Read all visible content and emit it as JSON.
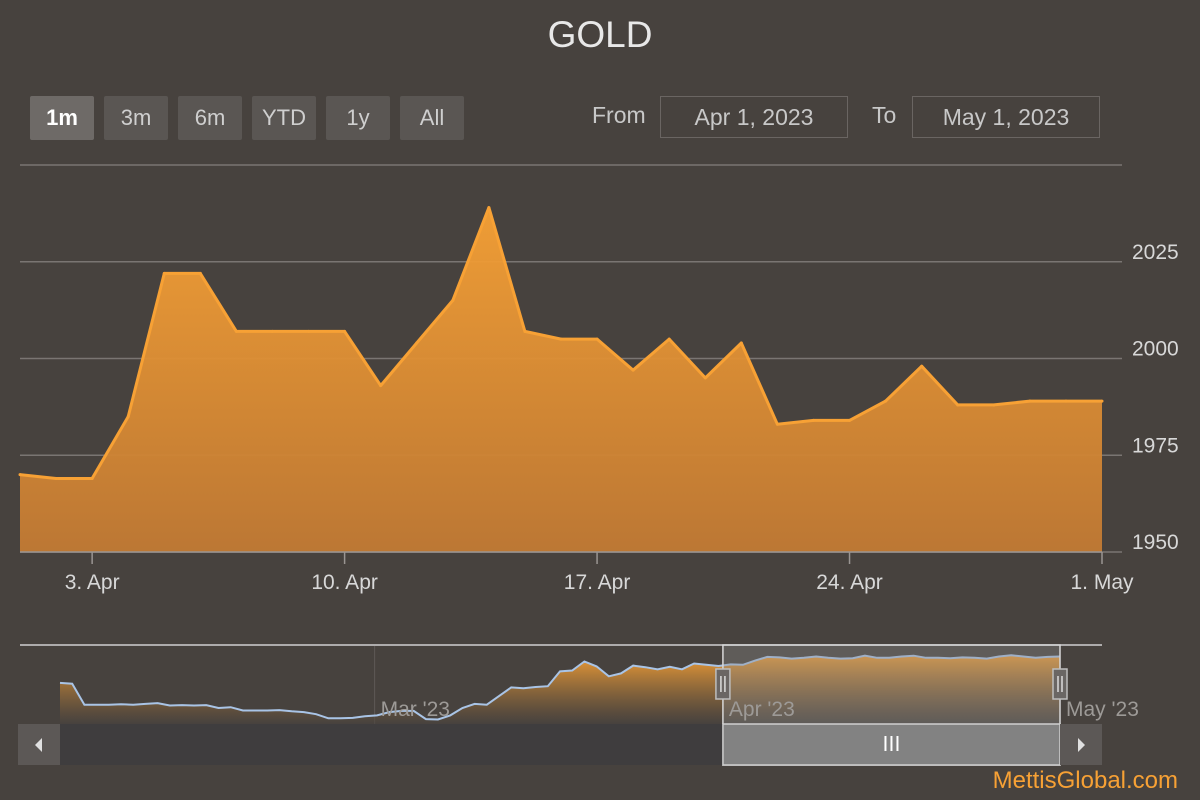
{
  "title": "GOLD",
  "range_selector": {
    "buttons": [
      {
        "label": "1m",
        "active": true
      },
      {
        "label": "3m",
        "active": false
      },
      {
        "label": "6m",
        "active": false
      },
      {
        "label": "YTD",
        "active": false
      },
      {
        "label": "1y",
        "active": false
      },
      {
        "label": "All",
        "active": false
      }
    ],
    "from_label": "From",
    "from_value": "Apr 1, 2023",
    "to_label": "To",
    "to_value": "May 1, 2023"
  },
  "credit": "MettisGlobal.com",
  "colors": {
    "background": "#47423e",
    "series": "#f7a135",
    "navigator_line": "#a9c4e6"
  },
  "chart_data": {
    "type": "area",
    "title": "GOLD",
    "series": [
      {
        "x": [
          "2023-04-01",
          "2023-04-02",
          "2023-04-03",
          "2023-04-04",
          "2023-04-05",
          "2023-04-06",
          "2023-04-07",
          "2023-04-08",
          "2023-04-09",
          "2023-04-10",
          "2023-04-11",
          "2023-04-12",
          "2023-04-13",
          "2023-04-14",
          "2023-04-15",
          "2023-04-16",
          "2023-04-17",
          "2023-04-18",
          "2023-04-19",
          "2023-04-20",
          "2023-04-21",
          "2023-04-22",
          "2023-04-23",
          "2023-04-24",
          "2023-04-25",
          "2023-04-26",
          "2023-04-27",
          "2023-04-28",
          "2023-04-29",
          "2023-04-30",
          "2023-05-01"
        ],
        "values": [
          1970,
          1969,
          1969,
          1985,
          2022,
          2022,
          2007,
          2007,
          2007,
          2007,
          1993,
          2004,
          2015,
          2039,
          2007,
          2005,
          2005,
          1997,
          2005,
          1995,
          2004,
          1983,
          1984,
          1984,
          1989,
          1998,
          1988,
          1988,
          1989,
          1989,
          1989
        ]
      }
    ],
    "xlabel": "",
    "ylabel": "",
    "x_range": [
      "2023-04-01",
      "2023-05-01"
    ],
    "x_ticks": [
      "3. Apr",
      "10. Apr",
      "17. Apr",
      "24. Apr",
      "1. May"
    ],
    "x_tick_dates": [
      "2023-04-03",
      "2023-04-10",
      "2023-04-17",
      "2023-04-24",
      "2023-05-01"
    ],
    "ylim": [
      1950,
      2050
    ],
    "y_ticks": [
      1950,
      1975,
      2000,
      2025
    ],
    "grid": true,
    "y_axis_side": "right",
    "navigator": {
      "labels": [
        "Mar '23",
        "Apr '23",
        "May '23"
      ],
      "label_dates": [
        "2023-03-01",
        "2023-04-01",
        "2023-05-01"
      ],
      "x_range": [
        "2023-02-01",
        "2023-05-01"
      ],
      "selected_range": [
        "2023-04-01",
        "2023-05-01"
      ],
      "series_values": [
        1925,
        1923,
        1872,
        1872,
        1872,
        1873,
        1872,
        1874,
        1876,
        1870,
        1871,
        1870,
        1871,
        1864,
        1866,
        1858,
        1858,
        1858,
        1859,
        1856,
        1854,
        1849,
        1839,
        1839,
        1840,
        1844,
        1846,
        1854,
        1857,
        1857,
        1837,
        1836,
        1846,
        1864,
        1874,
        1872,
        1893,
        1914,
        1912,
        1915,
        1917,
        1953,
        1955,
        1977,
        1965,
        1941,
        1948,
        1967,
        1963,
        1958,
        1964,
        1958,
        1972,
        1969,
        1966,
        1970,
        1969,
        1979,
        1988,
        1987,
        1984,
        1986,
        1989,
        1986,
        1984,
        1985,
        1991,
        1986,
        1986,
        1989,
        1991,
        1986,
        1986,
        1985,
        1987,
        1986,
        1984,
        1989,
        1992,
        1989,
        1986,
        1988,
        1989
      ]
    }
  }
}
